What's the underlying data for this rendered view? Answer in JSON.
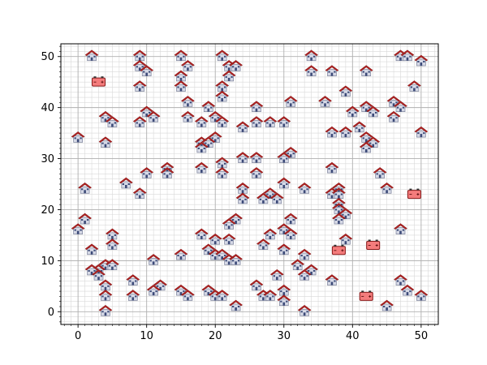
{
  "chart_data": {
    "type": "scatter",
    "title": "",
    "xlabel": "",
    "ylabel": "",
    "xlim": [
      -2.5,
      52.5
    ],
    "ylim": [
      -2.5,
      52.5
    ],
    "x_ticks": [
      0,
      10,
      20,
      30,
      40,
      50
    ],
    "y_ticks": [
      0,
      10,
      20,
      30,
      40,
      50
    ],
    "grid": {
      "major_step": 10,
      "minor_step": 1,
      "visible": true
    },
    "colors": {
      "house_roof": "#b22222",
      "house_body": "#d6d9e6",
      "house_door": "#3c4a78",
      "battery_fill": "#f47c7c",
      "battery_edge": "#8b1a1a",
      "grid": "#d9d9d9"
    },
    "series": [
      {
        "marker": "house-icon",
        "points": [
          [
            2,
            50
          ],
          [
            9,
            50
          ],
          [
            15,
            50
          ],
          [
            21,
            50
          ],
          [
            34,
            50
          ],
          [
            47,
            50
          ],
          [
            48,
            50
          ],
          [
            50,
            49
          ],
          [
            9,
            48
          ],
          [
            16,
            48
          ],
          [
            22,
            48
          ],
          [
            23,
            48
          ],
          [
            10,
            47
          ],
          [
            34,
            47
          ],
          [
            37,
            47
          ],
          [
            42,
            47
          ],
          [
            15,
            46
          ],
          [
            22,
            46
          ],
          [
            9,
            44
          ],
          [
            15,
            44
          ],
          [
            21,
            44
          ],
          [
            49,
            44
          ],
          [
            39,
            43
          ],
          [
            21,
            42
          ],
          [
            16,
            41
          ],
          [
            31,
            41
          ],
          [
            36,
            41
          ],
          [
            46,
            41
          ],
          [
            19,
            40
          ],
          [
            26,
            40
          ],
          [
            42,
            40
          ],
          [
            47,
            40
          ],
          [
            10,
            39
          ],
          [
            40,
            39
          ],
          [
            43,
            39
          ],
          [
            11,
            38
          ],
          [
            4,
            38
          ],
          [
            16,
            38
          ],
          [
            20,
            38
          ],
          [
            46,
            38
          ],
          [
            5,
            37
          ],
          [
            9,
            37
          ],
          [
            18,
            37
          ],
          [
            21,
            37
          ],
          [
            26,
            37
          ],
          [
            28,
            37
          ],
          [
            30,
            37
          ],
          [
            24,
            36
          ],
          [
            41,
            36
          ],
          [
            37,
            35
          ],
          [
            39,
            35
          ],
          [
            50,
            35
          ],
          [
            20,
            34
          ],
          [
            42,
            34
          ],
          [
            0,
            34
          ],
          [
            18,
            33
          ],
          [
            4,
            33
          ],
          [
            19,
            33
          ],
          [
            43,
            33
          ],
          [
            18,
            32
          ],
          [
            42,
            32
          ],
          [
            31,
            31
          ],
          [
            24,
            30
          ],
          [
            26,
            30
          ],
          [
            30,
            30
          ],
          [
            13,
            28
          ],
          [
            18,
            28
          ],
          [
            37,
            28
          ],
          [
            13,
            27
          ],
          [
            10,
            27
          ],
          [
            21,
            29
          ],
          [
            21,
            27
          ],
          [
            26,
            27
          ],
          [
            44,
            27
          ],
          [
            7,
            25
          ],
          [
            30,
            25
          ],
          [
            1,
            24
          ],
          [
            24,
            24
          ],
          [
            33,
            24
          ],
          [
            38,
            24
          ],
          [
            45,
            24
          ],
          [
            9,
            23
          ],
          [
            28,
            23
          ],
          [
            37,
            23
          ],
          [
            38,
            23
          ],
          [
            24,
            22
          ],
          [
            27,
            22
          ],
          [
            29,
            22
          ],
          [
            38,
            21
          ],
          [
            38,
            20
          ],
          [
            39,
            19
          ],
          [
            38,
            18
          ],
          [
            1,
            18
          ],
          [
            23,
            18
          ],
          [
            31,
            18
          ],
          [
            22,
            17
          ],
          [
            30,
            16
          ],
          [
            0,
            16
          ],
          [
            5,
            15
          ],
          [
            18,
            15
          ],
          [
            28,
            15
          ],
          [
            31,
            15
          ],
          [
            47,
            16
          ],
          [
            20,
            14
          ],
          [
            22,
            14
          ],
          [
            39,
            14
          ],
          [
            5,
            13
          ],
          [
            27,
            13
          ],
          [
            2,
            12
          ],
          [
            19,
            12
          ],
          [
            30,
            12
          ],
          [
            15,
            11
          ],
          [
            20,
            11
          ],
          [
            21,
            11
          ],
          [
            33,
            11
          ],
          [
            11,
            10
          ],
          [
            22,
            10
          ],
          [
            23,
            10
          ],
          [
            4,
            9
          ],
          [
            5,
            9
          ],
          [
            32,
            9
          ],
          [
            3,
            8
          ],
          [
            2,
            8
          ],
          [
            34,
            8
          ],
          [
            3,
            7
          ],
          [
            29,
            7
          ],
          [
            33,
            7
          ],
          [
            8,
            6
          ],
          [
            37,
            6
          ],
          [
            47,
            6
          ],
          [
            12,
            5
          ],
          [
            26,
            5
          ],
          [
            4,
            5
          ],
          [
            11,
            4
          ],
          [
            15,
            4
          ],
          [
            19,
            4
          ],
          [
            30,
            4
          ],
          [
            48,
            4
          ],
          [
            16,
            3
          ],
          [
            4,
            3
          ],
          [
            8,
            3
          ],
          [
            20,
            3
          ],
          [
            21,
            3
          ],
          [
            27,
            3
          ],
          [
            28,
            3
          ],
          [
            30,
            2
          ],
          [
            50,
            3
          ],
          [
            23,
            1
          ],
          [
            33,
            0
          ],
          [
            45,
            1
          ],
          [
            4,
            0
          ]
        ]
      },
      {
        "marker": "battery-icon",
        "points": [
          [
            3,
            45
          ],
          [
            49,
            23
          ],
          [
            38,
            12
          ],
          [
            43,
            13
          ],
          [
            42,
            3
          ]
        ]
      }
    ]
  }
}
